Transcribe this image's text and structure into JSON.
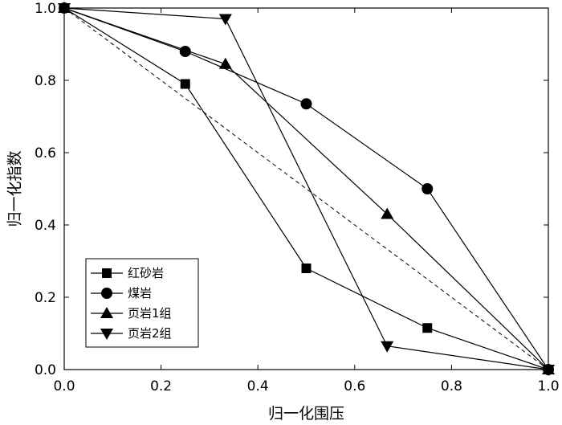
{
  "chart_data": {
    "type": "line",
    "xlabel": "归一化围压",
    "ylabel": "归一化指数",
    "xlim": [
      0,
      1.0
    ],
    "ylim": [
      0,
      1.0
    ],
    "xticks": [
      0.0,
      0.2,
      0.4,
      0.6,
      0.8,
      1.0
    ],
    "yticks": [
      0.0,
      0.2,
      0.4,
      0.6,
      0.8,
      1.0
    ],
    "xtick_labels": [
      "0.0",
      "0.2",
      "0.4",
      "0.6",
      "0.8",
      "1.0"
    ],
    "ytick_labels": [
      "0.0",
      "0.2",
      "0.4",
      "0.6",
      "0.8",
      "1.0"
    ],
    "grid": false,
    "legend_position": "bottom-left",
    "reference_line": {
      "style": "dashed",
      "x": [
        0,
        1.0
      ],
      "y": [
        1.0,
        0
      ]
    },
    "series": [
      {
        "name": "红砂岩",
        "marker": "square",
        "x": [
          0,
          0.25,
          0.5,
          0.75,
          1.0
        ],
        "y": [
          1.0,
          0.79,
          0.28,
          0.115,
          0
        ]
      },
      {
        "name": "煤岩",
        "marker": "circle",
        "x": [
          0,
          0.25,
          0.5,
          0.75,
          1.0
        ],
        "y": [
          1.0,
          0.88,
          0.735,
          0.5,
          0
        ]
      },
      {
        "name": "页岩1组",
        "marker": "triangle-up",
        "x": [
          0,
          0.333,
          0.667,
          1.0
        ],
        "y": [
          1.0,
          0.845,
          0.43,
          0
        ]
      },
      {
        "name": "页岩2组",
        "marker": "triangle-down",
        "x": [
          0,
          0.333,
          0.667,
          1.0
        ],
        "y": [
          1.0,
          0.97,
          0.065,
          0
        ]
      }
    ]
  }
}
